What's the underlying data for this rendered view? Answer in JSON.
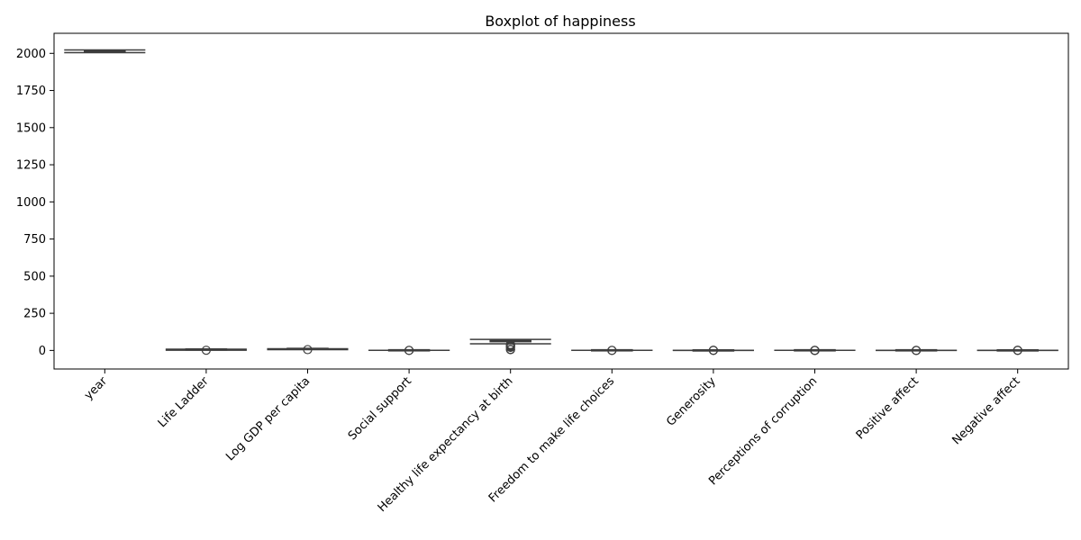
{
  "chart_data": {
    "type": "boxplot",
    "title": "Boxplot of happiness",
    "xlabel": "",
    "ylabel": "",
    "ylim": [
      -125,
      2135
    ],
    "yticks": [
      0,
      250,
      500,
      750,
      1000,
      1250,
      1500,
      1750,
      2000
    ],
    "grid": false,
    "legend": "none",
    "box_color": "#1f77b4",
    "categories": [
      "year",
      "Life Ladder",
      "Log GDP per capita",
      "Social support",
      "Healthy life expectancy at birth",
      "Freedom to make life choices",
      "Generosity",
      "Perceptions of corruption",
      "Positive affect",
      "Negative affect"
    ],
    "boxes": [
      {
        "min": 2005,
        "q1": 2010,
        "median": 2014,
        "q3": 2019,
        "max": 2023,
        "outliers": []
      },
      {
        "min": 1.3,
        "q1": 4.6,
        "median": 5.4,
        "q3": 6.3,
        "max": 8.0,
        "outliers": [
          1.2
        ]
      },
      {
        "min": 5.5,
        "q1": 8.5,
        "median": 9.5,
        "q3": 10.4,
        "max": 11.7,
        "outliers": [
          5.5
        ]
      },
      {
        "min": 0.4,
        "q1": 0.75,
        "median": 0.83,
        "q3": 0.9,
        "max": 0.99,
        "outliers": [
          0.3,
          0.25
        ]
      },
      {
        "min": 45,
        "q1": 59,
        "median": 65,
        "q3": 68.5,
        "max": 74.5,
        "outliers": [
          40,
          35,
          30,
          25,
          20,
          7,
          5
        ]
      },
      {
        "min": 0.45,
        "q1": 0.66,
        "median": 0.77,
        "q3": 0.86,
        "max": 0.99,
        "outliers": [
          0.3,
          0.25
        ]
      },
      {
        "min": -0.34,
        "q1": -0.11,
        "median": -0.02,
        "q3": 0.09,
        "max": 0.4,
        "outliers": [
          0.5,
          0.6
        ]
      },
      {
        "min": 0.4,
        "q1": 0.69,
        "median": 0.8,
        "q3": 0.87,
        "max": 0.98,
        "outliers": [
          0.1,
          0.2,
          0.3
        ]
      },
      {
        "min": 0.3,
        "q1": 0.57,
        "median": 0.66,
        "q3": 0.74,
        "max": 0.88,
        "outliers": [
          0.2,
          0.18
        ]
      },
      {
        "min": 0.08,
        "q1": 0.21,
        "median": 0.26,
        "q3": 0.33,
        "max": 0.5,
        "outliers": [
          0.6,
          0.7
        ]
      }
    ]
  }
}
